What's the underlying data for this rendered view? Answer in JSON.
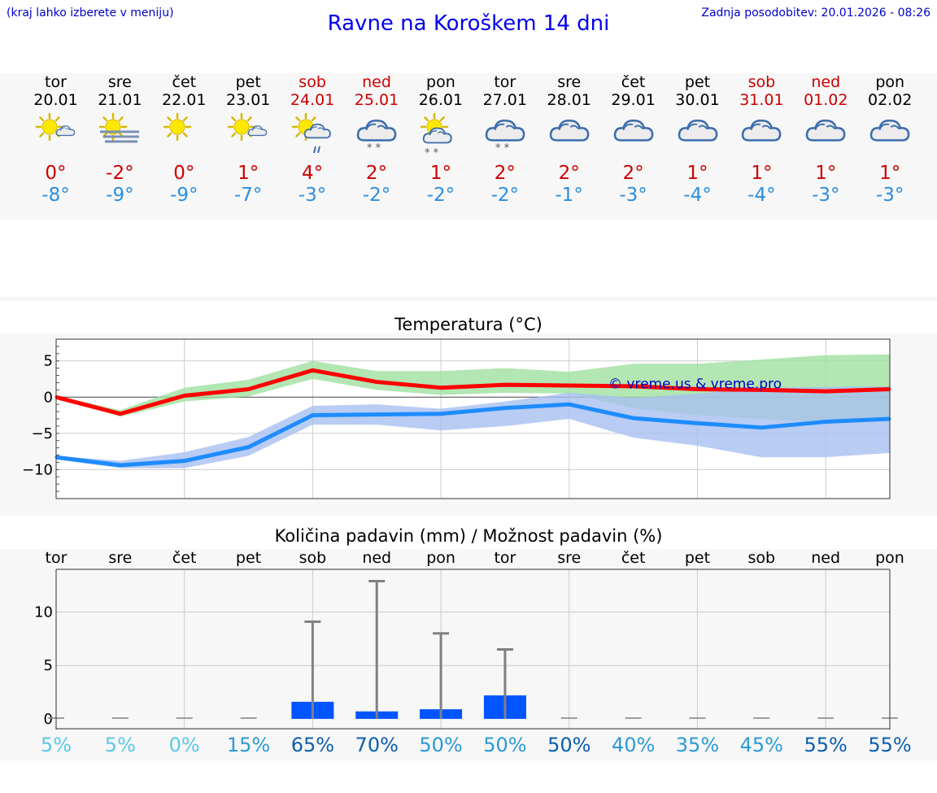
{
  "header": {
    "left_note": "(kraj lahko izberete v meniju)",
    "title": "Ravne na Koroškem 14 dni",
    "updated": "Zadnja posodobitev: 20.01.2026 - 08:26"
  },
  "days": [
    {
      "name": "tor",
      "date": "20.01",
      "tmax": "0°",
      "tmin": "-8°",
      "icon": "partly-cloudy-icon",
      "weekend": false
    },
    {
      "name": "sre",
      "date": "21.01",
      "tmax": "-2°",
      "tmin": "-9°",
      "icon": "sun-fog-icon",
      "weekend": false
    },
    {
      "name": "čet",
      "date": "22.01",
      "tmax": "0°",
      "tmin": "-9°",
      "icon": "sun-icon",
      "weekend": false
    },
    {
      "name": "pet",
      "date": "23.01",
      "tmax": "1°",
      "tmin": "-7°",
      "icon": "partly-cloudy-icon",
      "weekend": false
    },
    {
      "name": "sob",
      "date": "24.01",
      "tmax": "4°",
      "tmin": "-3°",
      "icon": "sun-cloud-rain-icon",
      "weekend": true
    },
    {
      "name": "ned",
      "date": "25.01",
      "tmax": "2°",
      "tmin": "-2°",
      "icon": "cloud-snow-icon",
      "weekend": true
    },
    {
      "name": "pon",
      "date": "26.01",
      "tmax": "1°",
      "tmin": "-2°",
      "icon": "sun-cloud-snow-icon",
      "weekend": false
    },
    {
      "name": "tor",
      "date": "27.01",
      "tmax": "2°",
      "tmin": "-2°",
      "icon": "cloud-snow-icon",
      "weekend": false
    },
    {
      "name": "sre",
      "date": "28.01",
      "tmax": "2°",
      "tmin": "-1°",
      "icon": "cloudy-icon",
      "weekend": false
    },
    {
      "name": "čet",
      "date": "29.01",
      "tmax": "2°",
      "tmin": "-3°",
      "icon": "cloudy-icon",
      "weekend": false
    },
    {
      "name": "pet",
      "date": "30.01",
      "tmax": "1°",
      "tmin": "-4°",
      "icon": "cloudy-icon",
      "weekend": false
    },
    {
      "name": "sob",
      "date": "31.01",
      "tmax": "1°",
      "tmin": "-4°",
      "icon": "cloudy-icon",
      "weekend": true
    },
    {
      "name": "ned",
      "date": "01.02",
      "tmax": "1°",
      "tmin": "-3°",
      "icon": "cloudy-icon",
      "weekend": true
    },
    {
      "name": "pon",
      "date": "02.02",
      "tmax": "1°",
      "tmin": "-3°",
      "icon": "cloudy-icon",
      "weekend": false
    }
  ],
  "chart_data": [
    {
      "type": "line",
      "title": "Temperatura (°C)",
      "watermark": "© vreme.us & vreme.pro",
      "x": [
        0,
        1,
        2,
        3,
        4,
        5,
        6,
        7,
        8,
        9,
        10,
        11,
        12,
        13
      ],
      "ylim": [
        -14,
        8
      ],
      "yticks": [
        5,
        0,
        -5,
        -10
      ],
      "ytick_labels": [
        "5",
        "0",
        "−5",
        "−10"
      ],
      "series": [
        {
          "name": "max",
          "color": "#ff0000",
          "values": [
            0,
            -2.3,
            0.2,
            1.1,
            3.7,
            2.1,
            1.3,
            1.7,
            1.6,
            1.5,
            1.1,
            1.0,
            0.8,
            1.1
          ]
        },
        {
          "name": "min",
          "color": "#1e8cff",
          "values": [
            -8.3,
            -9.4,
            -8.8,
            -6.9,
            -2.5,
            -2.4,
            -2.3,
            -1.5,
            -1.0,
            -2.9,
            -3.6,
            -4.2,
            -3.4,
            -3.0
          ]
        }
      ],
      "bands": [
        {
          "name": "max range",
          "color": "#9fe09f",
          "low": [
            0,
            -2.7,
            -0.6,
            0.1,
            2.5,
            1.0,
            0.3,
            0.6,
            0.5,
            -1.5,
            -2.5,
            -3.0,
            -3.5,
            -3.2
          ],
          "high": [
            0.2,
            -1.8,
            1.3,
            2.4,
            5.0,
            3.6,
            3.6,
            4.0,
            3.5,
            4.6,
            4.6,
            5.2,
            5.8,
            5.9
          ]
        },
        {
          "name": "min range",
          "color": "#a8bff0",
          "low": [
            -8.6,
            -9.8,
            -9.8,
            -8.1,
            -3.8,
            -3.8,
            -4.6,
            -4.0,
            -3.0,
            -5.6,
            -6.7,
            -8.3,
            -8.3,
            -7.7
          ],
          "high": [
            -8.1,
            -8.8,
            -7.6,
            -5.5,
            -1.2,
            -1.0,
            -1.6,
            -0.6,
            0.6,
            -0.1,
            0.5,
            1.3,
            1.4,
            1.5
          ]
        }
      ]
    },
    {
      "type": "bar",
      "title": "Količina padavin (mm) / Možnost padavin (%)",
      "categories": [
        "tor",
        "sre",
        "čet",
        "pet",
        "sob",
        "ned",
        "pon",
        "tor",
        "sre",
        "čet",
        "pet",
        "sob",
        "ned",
        "pon"
      ],
      "ylim": [
        -1,
        14
      ],
      "yticks": [
        10,
        5,
        0
      ],
      "ytick_labels": [
        "10",
        "5",
        "0"
      ],
      "values": [
        0,
        0,
        0,
        0,
        1.6,
        0.7,
        0.9,
        2.2,
        0,
        0,
        0,
        0,
        0,
        0
      ],
      "max_values": [
        0,
        0,
        0,
        0,
        9.1,
        12.9,
        8.0,
        6.5,
        0,
        0,
        0,
        0,
        0,
        0
      ],
      "probability": [
        "5%",
        "5%",
        "0%",
        "15%",
        "65%",
        "70%",
        "50%",
        "50%",
        "50%",
        "40%",
        "35%",
        "45%",
        "55%",
        "55%"
      ],
      "probability_colors": [
        "#5bc8e8",
        "#5bc8e8",
        "#5bc8e8",
        "#2a9ad8",
        "#0a5fb0",
        "#0a5fb0",
        "#2a9ad8",
        "#2a9ad8",
        "#0a5fb0",
        "#2a9ad8",
        "#2a9ad8",
        "#2a9ad8",
        "#0a5fb0",
        "#0a5fb0"
      ],
      "bar_color": "#0055ff",
      "whisker_color": "#808080"
    }
  ]
}
